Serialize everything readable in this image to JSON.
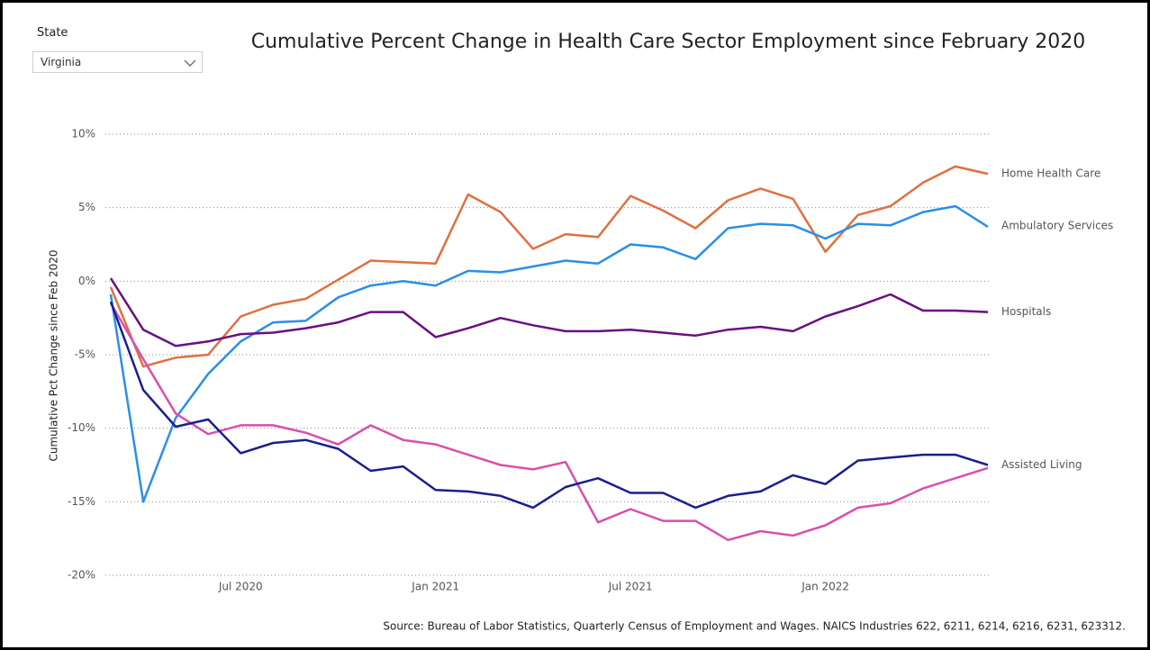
{
  "slicer": {
    "label": "State",
    "value": "Virginia"
  },
  "chart_data": {
    "type": "line",
    "title": "Cumulative Percent Change in Health Care Sector Employment since February 2020",
    "y_label": "Cumulative Pct Change since Feb 2020",
    "source": "Source: Bureau of Labor Statistics, Quarterly Census of Employment and Wages. NAICS Industries 622, 6211, 6214, 6216, 6231, 623312.",
    "x": [
      "2020-03",
      "2020-04",
      "2020-05",
      "2020-06",
      "2020-07",
      "2020-08",
      "2020-09",
      "2020-10",
      "2020-11",
      "2020-12",
      "2021-01",
      "2021-02",
      "2021-03",
      "2021-04",
      "2021-05",
      "2021-06",
      "2021-07",
      "2021-08",
      "2021-09",
      "2021-10",
      "2021-11",
      "2021-12",
      "2022-01",
      "2022-02",
      "2022-03",
      "2022-04",
      "2022-05",
      "2022-06"
    ],
    "xticks": [
      {
        "value": "2020-07",
        "label": "Jul 2020"
      },
      {
        "value": "2021-01",
        "label": "Jan 2021"
      },
      {
        "value": "2021-07",
        "label": "Jul 2021"
      },
      {
        "value": "2022-01",
        "label": "Jan 2022"
      }
    ],
    "ylim": [
      -20,
      10
    ],
    "yticks": [
      {
        "value": -20,
        "label": "-20%"
      },
      {
        "value": -15,
        "label": "-15%"
      },
      {
        "value": -10,
        "label": "-10%"
      },
      {
        "value": -5,
        "label": "-5%"
      },
      {
        "value": 0,
        "label": "0%"
      },
      {
        "value": 5,
        "label": "5%"
      },
      {
        "value": 10,
        "label": "10%"
      }
    ],
    "grid": true,
    "series": [
      {
        "name": "Home Health Care",
        "color": "#e07040",
        "values": [
          -0.4,
          -5.8,
          -5.2,
          -5.0,
          -2.4,
          -1.6,
          -1.2,
          0.1,
          1.4,
          1.3,
          1.2,
          5.9,
          4.7,
          2.2,
          3.2,
          3.0,
          5.8,
          4.8,
          3.6,
          5.5,
          6.3,
          5.6,
          2.0,
          4.5,
          5.1,
          6.7,
          7.8,
          7.3
        ]
      },
      {
        "name": "Ambulatory Services",
        "color": "#2b8ee8",
        "values": [
          -0.9,
          -15.0,
          -9.3,
          -6.3,
          -4.1,
          -2.8,
          -2.7,
          -1.1,
          -0.3,
          0,
          -0.3,
          0.7,
          0.6,
          1.0,
          1.4,
          1.2,
          2.5,
          2.3,
          1.5,
          3.6,
          3.9,
          3.8,
          2.9,
          3.9,
          3.8,
          4.7,
          5.1,
          3.7
        ]
      },
      {
        "name": "Hospitals",
        "color": "#6a0f80",
        "values": [
          0.2,
          -3.3,
          -4.4,
          -4.1,
          -3.6,
          -3.5,
          -3.2,
          -2.8,
          -2.1,
          -2.1,
          -3.8,
          -3.2,
          -2.5,
          -3.0,
          -3.4,
          -3.4,
          -3.3,
          -3.5,
          -3.7,
          -3.3,
          -3.1,
          -3.4,
          -2.4,
          -1.7,
          -0.9,
          -2.0,
          -2.0,
          -2.1
        ]
      },
      {
        "name": null,
        "color": "#d84fb0",
        "values": [
          -1.5,
          -5.3,
          -9.0,
          -10.4,
          -9.8,
          -9.8,
          -10.3,
          -11.1,
          -9.8,
          -10.8,
          -11.1,
          -11.8,
          -12.5,
          -12.8,
          -12.3,
          -16.4,
          -15.5,
          -16.3,
          -16.3,
          -17.6,
          -17.0,
          -17.3,
          -16.6,
          -15.4,
          -15.1,
          -14.1,
          -13.4,
          -12.7
        ]
      },
      {
        "name": "Assisted Living",
        "color": "#1a1f8c",
        "values": [
          -1.4,
          -7.4,
          -9.9,
          -9.4,
          -11.7,
          -11.0,
          -10.8,
          -11.4,
          -12.9,
          -12.6,
          -14.2,
          -14.3,
          -14.6,
          -15.4,
          -14.0,
          -13.4,
          -14.4,
          -14.4,
          -15.4,
          -14.6,
          -14.3,
          -13.2,
          -13.8,
          -12.2,
          -12.0,
          -11.8,
          -11.8,
          -12.5
        ]
      }
    ]
  }
}
